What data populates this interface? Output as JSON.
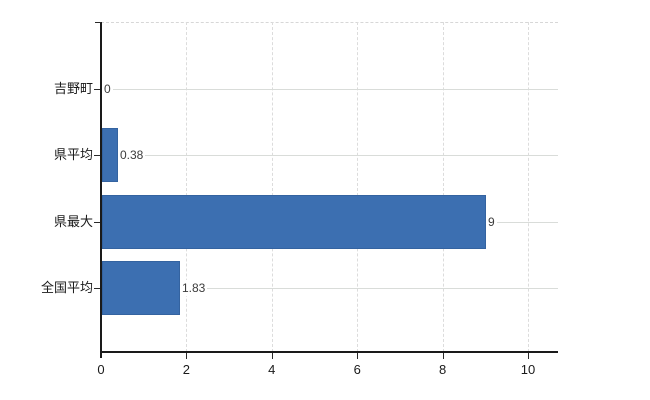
{
  "page": {
    "background_color": "#ffffff"
  },
  "chart_data": {
    "type": "bar",
    "orientation": "horizontal",
    "title": "",
    "xlabel": "",
    "ylabel": "",
    "categories": [
      "吉野町",
      "県平均",
      "県最大",
      "全国平均"
    ],
    "values": [
      0,
      0.38,
      9,
      1.83
    ],
    "value_labels": [
      "0",
      "0.38",
      "9",
      "1.83"
    ],
    "x_tick_labels": [
      "0",
      "2",
      "4",
      "6",
      "8",
      "10"
    ],
    "x_tick_values": [
      0,
      2,
      4,
      6,
      8,
      10
    ],
    "xlim": [
      0,
      10.7
    ],
    "grid": true,
    "legend": false,
    "colors": {
      "bar": "#3c6fb1",
      "grid_solid": "#d9dcd9",
      "grid_dashed": "#dcdcdc",
      "axis": "#1a1a1a",
      "category_label": "#1a1a1a",
      "value_label": "#3c3c3c",
      "background": "#ffffff"
    }
  }
}
